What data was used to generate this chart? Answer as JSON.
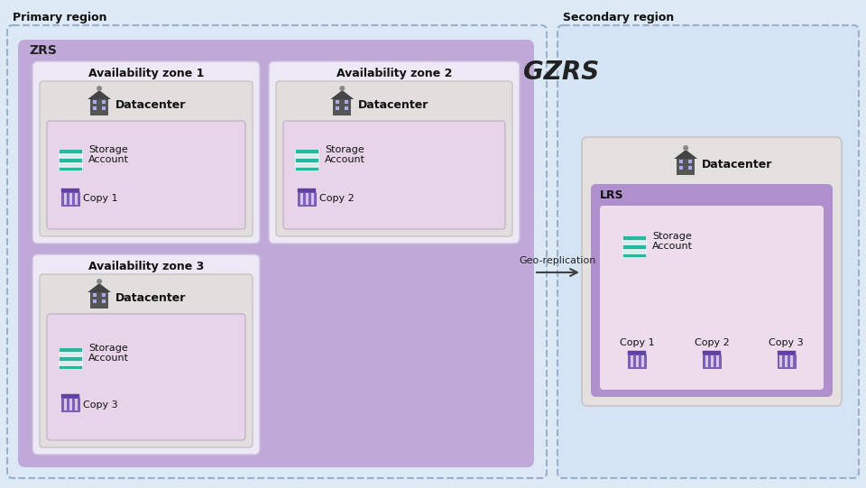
{
  "bg_color": "#ddeaf5",
  "primary_region_label": "Primary region",
  "secondary_region_label": "Secondary region",
  "gzrs_label": "GZRS",
  "zrs_label": "ZRS",
  "lrs_label": "LRS",
  "datacenter_label": "Datacenter",
  "geo_replication_label": "Geo-replication",
  "availability_zones": [
    "Availability zone 1",
    "Availability zone 2",
    "Availability zone 3"
  ],
  "copies_primary": [
    "Copy 1",
    "Copy 2",
    "Copy 3"
  ],
  "copies_secondary": [
    "Copy 1",
    "Copy 2",
    "Copy 3"
  ],
  "outer_border_color": "#9ab0cc",
  "primary_box_color": "#c0a8d8",
  "availability_zone_box_color": "#ede8f5",
  "datacenter_box_color": "#e2dede",
  "inner_storage_box_color": "#e8d4e8",
  "secondary_box_color": "#d4e4f4",
  "lrs_box_color": "#b090cc",
  "lrs_inner_color": "#ecdcec",
  "secondary_datacenter_box_color": "#e4e0e0",
  "arrow_color": "#404040",
  "copy_icon_color": "#8060b8",
  "copy_icon_top_color": "#6040a0",
  "storage_bar_color1": "#2ab5a0",
  "storage_bar_color2": "#d0ece8"
}
